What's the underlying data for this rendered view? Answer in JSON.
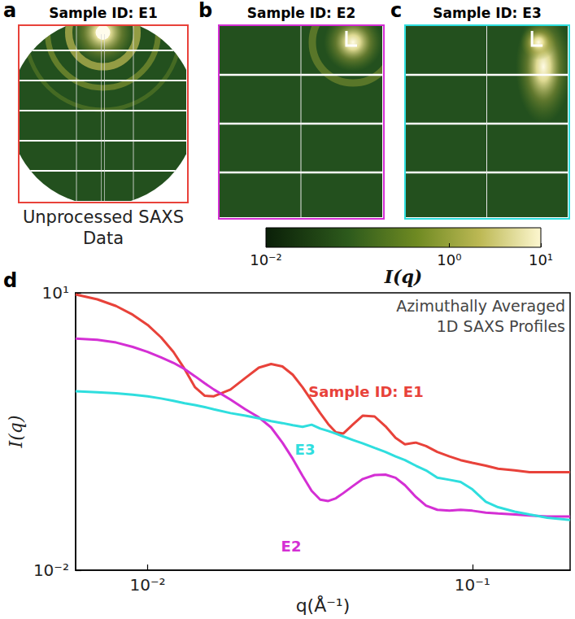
{
  "panels": [
    {
      "letter": "a",
      "title": "Sample ID: E1",
      "caption": "Unprocessed SAXS Data",
      "color": "#e8423a"
    },
    {
      "letter": "b",
      "title": "Sample ID: E2",
      "color": "#d42fd4"
    },
    {
      "letter": "c",
      "title": "Sample ID: E3",
      "color": "#2fdede"
    }
  ],
  "colorbar": {
    "label": "I(q)",
    "lim": [
      0.01,
      10
    ],
    "ticks": [
      {
        "value": 0.01,
        "label": "10⁻²"
      },
      {
        "value": 1,
        "label": "10⁰"
      },
      {
        "value": 10,
        "label": "10¹"
      }
    ]
  },
  "chart_data": {
    "type": "line",
    "panel": "d",
    "title": "Azimuthally Averaged 1D SAXS Profiles",
    "x_label": "q(Å⁻¹)",
    "y_label": "I(q)",
    "log": true,
    "grid": false,
    "xlim": [
      0.006,
      0.2
    ],
    "ylim": [
      0.01,
      10
    ],
    "xticks": [
      {
        "value": 0.01,
        "label": "10⁻²"
      },
      {
        "value": 0.1,
        "label": "10⁻¹"
      }
    ],
    "yticks": [
      {
        "value": 0.01,
        "label": "10⁻²"
      },
      {
        "value": 10,
        "label": "10¹"
      }
    ],
    "x": [
      0.006,
      0.007,
      0.008,
      0.009,
      0.01,
      0.011,
      0.012,
      0.013,
      0.014,
      0.015,
      0.016,
      0.018,
      0.02,
      0.022,
      0.024,
      0.026,
      0.028,
      0.03,
      0.032,
      0.034,
      0.036,
      0.038,
      0.04,
      0.043,
      0.046,
      0.05,
      0.054,
      0.058,
      0.062,
      0.067,
      0.072,
      0.078,
      0.085,
      0.092,
      0.1,
      0.11,
      0.12,
      0.135,
      0.15,
      0.17,
      0.2
    ],
    "series": [
      {
        "name": "Sample ID: E1",
        "color": "#e8423a",
        "values": [
          9.6,
          8.5,
          7.2,
          5.8,
          4.5,
          3.3,
          2.3,
          1.5,
          0.95,
          0.77,
          0.76,
          0.9,
          1.2,
          1.55,
          1.7,
          1.6,
          1.3,
          0.95,
          0.68,
          0.5,
          0.38,
          0.31,
          0.3,
          0.38,
          0.47,
          0.46,
          0.36,
          0.27,
          0.23,
          0.24,
          0.22,
          0.19,
          0.17,
          0.155,
          0.145,
          0.135,
          0.125,
          0.12,
          0.115,
          0.115,
          0.115
        ]
      },
      {
        "name": "E2",
        "color": "#d42fd4",
        "values": [
          3.2,
          3.1,
          2.9,
          2.6,
          2.3,
          2.0,
          1.75,
          1.5,
          1.25,
          1.05,
          0.9,
          0.7,
          0.55,
          0.45,
          0.35,
          0.24,
          0.16,
          0.105,
          0.072,
          0.058,
          0.056,
          0.06,
          0.068,
          0.082,
          0.097,
          0.107,
          0.108,
          0.1,
          0.083,
          0.062,
          0.05,
          0.045,
          0.044,
          0.045,
          0.044,
          0.042,
          0.041,
          0.04,
          0.039,
          0.038,
          0.038
        ]
      },
      {
        "name": "E3",
        "color": "#2fdede",
        "values": [
          0.86,
          0.84,
          0.82,
          0.79,
          0.76,
          0.72,
          0.68,
          0.64,
          0.61,
          0.58,
          0.55,
          0.5,
          0.47,
          0.44,
          0.41,
          0.39,
          0.37,
          0.355,
          0.375,
          0.34,
          0.32,
          0.3,
          0.28,
          0.255,
          0.235,
          0.21,
          0.19,
          0.17,
          0.155,
          0.135,
          0.12,
          0.1,
          0.095,
          0.09,
          0.075,
          0.055,
          0.048,
          0.043,
          0.04,
          0.037,
          0.035
        ]
      }
    ]
  }
}
